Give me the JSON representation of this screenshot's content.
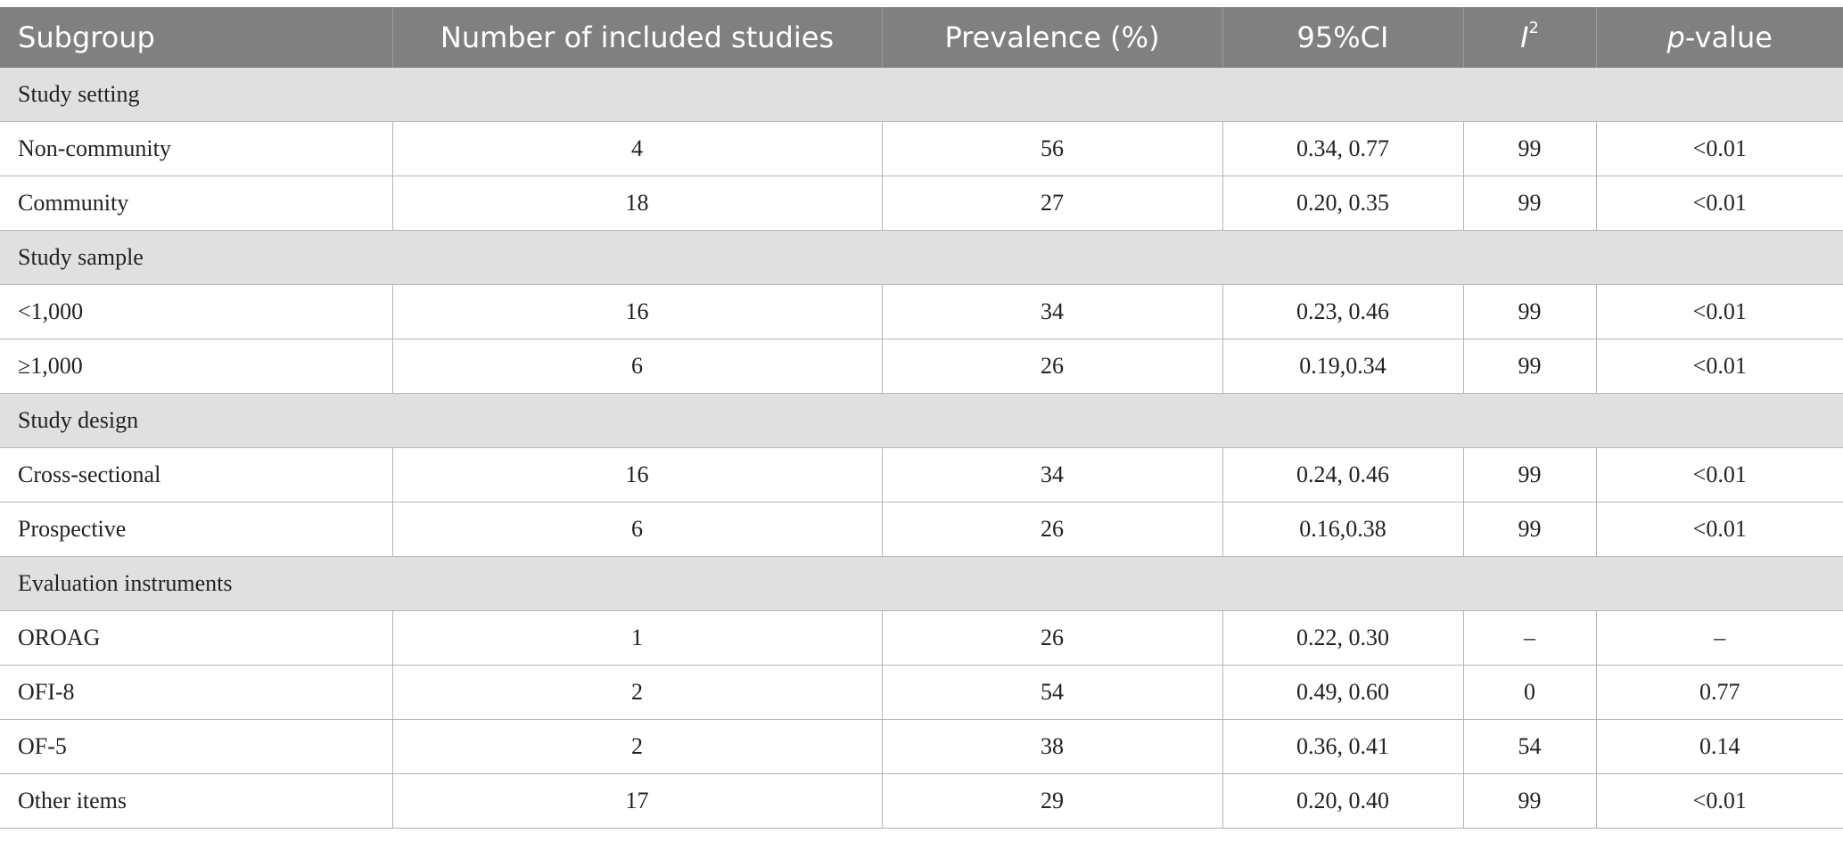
{
  "header": {
    "subgroup": "Subgroup",
    "studies": "Number of included studies",
    "prevalence": "Prevalence (%)",
    "ci": "95%CI",
    "i2_letter": "I",
    "i2_sup": "2",
    "p_letter": "p",
    "p_suffix": "-value"
  },
  "groups": [
    {
      "title": "Study setting",
      "rows": [
        {
          "label": "Non-community",
          "n": "4",
          "prev": "56",
          "ci": "0.34, 0.77",
          "i2": "99",
          "p": "<0.01"
        },
        {
          "label": "Community",
          "n": "18",
          "prev": "27",
          "ci": "0.20, 0.35",
          "i2": "99",
          "p": "<0.01"
        }
      ]
    },
    {
      "title": "Study sample",
      "rows": [
        {
          "label": "<1,000",
          "n": "16",
          "prev": "34",
          "ci": "0.23, 0.46",
          "i2": "99",
          "p": "<0.01"
        },
        {
          "label": "≥1,000",
          "n": "6",
          "prev": "26",
          "ci": "0.19,0.34",
          "i2": "99",
          "p": "<0.01"
        }
      ]
    },
    {
      "title": "Study design",
      "rows": [
        {
          "label": "Cross-sectional",
          "n": "16",
          "prev": "34",
          "ci": "0.24, 0.46",
          "i2": "99",
          "p": "<0.01"
        },
        {
          "label": "Prospective",
          "n": "6",
          "prev": "26",
          "ci": "0.16,0.38",
          "i2": "99",
          "p": "<0.01"
        }
      ]
    },
    {
      "title": "Evaluation instruments",
      "rows": [
        {
          "label": "OROAG",
          "n": "1",
          "prev": "26",
          "ci": "0.22, 0.30",
          "i2": "–",
          "p": "–"
        },
        {
          "label": "OFI-8",
          "n": "2",
          "prev": "54",
          "ci": "0.49, 0.60",
          "i2": "0",
          "p": "0.77"
        },
        {
          "label": "OF-5",
          "n": "2",
          "prev": "38",
          "ci": "0.36, 0.41",
          "i2": "54",
          "p": "0.14"
        },
        {
          "label": "Other items",
          "n": "17",
          "prev": "29",
          "ci": "0.20, 0.40",
          "i2": "99",
          "p": "<0.01"
        }
      ]
    }
  ]
}
